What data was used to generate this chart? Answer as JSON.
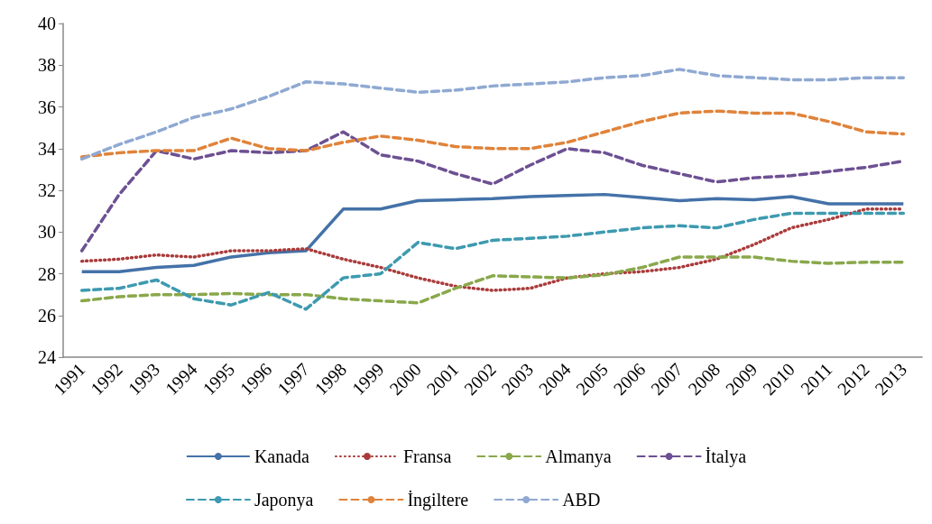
{
  "chart_data": {
    "type": "line",
    "categories": [
      "1991",
      "1992",
      "1993",
      "1994",
      "1995",
      "1996",
      "1997",
      "1998",
      "1999",
      "2000",
      "2001",
      "2002",
      "2003",
      "2004",
      "2005",
      "2006",
      "2007",
      "2008",
      "2009",
      "2010",
      "2011",
      "2012",
      "2013"
    ],
    "series": [
      {
        "name": "Kanada",
        "color": "#4472a8",
        "line_style": "solid",
        "values": [
          28.1,
          28.1,
          28.3,
          28.4,
          28.8,
          29.0,
          29.1,
          31.1,
          31.1,
          31.5,
          31.55,
          31.6,
          31.7,
          31.75,
          31.8,
          31.65,
          31.5,
          31.6,
          31.55,
          31.7,
          31.35,
          31.35,
          31.35
        ]
      },
      {
        "name": "Fransa",
        "color": "#aa3b3b",
        "line_style": "dotted",
        "values": [
          28.6,
          28.7,
          28.9,
          28.8,
          29.1,
          29.1,
          29.2,
          28.7,
          28.3,
          27.8,
          27.4,
          27.2,
          27.3,
          27.8,
          28.0,
          28.1,
          28.3,
          28.7,
          29.4,
          30.2,
          30.6,
          31.1,
          31.1
        ]
      },
      {
        "name": "Almanya",
        "color": "#89a84b",
        "line_style": "dashed",
        "values": [
          26.7,
          26.9,
          27.0,
          27.0,
          27.05,
          27.0,
          27.0,
          26.8,
          26.7,
          26.6,
          27.3,
          27.9,
          27.85,
          27.8,
          27.95,
          28.3,
          28.8,
          28.8,
          28.8,
          28.6,
          28.5,
          28.55,
          28.55
        ]
      },
      {
        "name": "İtalya",
        "color": "#6d5093",
        "line_style": "dashed",
        "values": [
          29.1,
          31.8,
          33.9,
          33.5,
          33.9,
          33.8,
          33.9,
          34.8,
          33.7,
          33.4,
          32.8,
          32.3,
          33.2,
          34.0,
          33.8,
          33.2,
          32.8,
          32.4,
          32.6,
          32.7,
          32.9,
          33.1,
          33.4
        ]
      },
      {
        "name": "Japonya",
        "color": "#3d9ab0",
        "line_style": "dashed",
        "values": [
          27.2,
          27.3,
          27.7,
          26.8,
          26.5,
          27.1,
          26.3,
          27.8,
          28.0,
          29.5,
          29.2,
          29.6,
          29.7,
          29.8,
          30.0,
          30.2,
          30.3,
          30.2,
          30.6,
          30.9,
          30.9,
          30.9,
          30.9
        ]
      },
      {
        "name": "İngiltere",
        "color": "#e0833a",
        "line_style": "dashed",
        "values": [
          33.6,
          33.8,
          33.9,
          33.9,
          34.5,
          34.0,
          33.9,
          34.3,
          34.6,
          34.4,
          34.1,
          34.0,
          34.0,
          34.3,
          34.8,
          35.3,
          35.7,
          35.8,
          35.7,
          35.7,
          35.3,
          34.8,
          34.7
        ]
      },
      {
        "name": "ABD",
        "color": "#8fa9d2",
        "line_style": "dashed",
        "values": [
          33.5,
          34.2,
          34.8,
          35.5,
          35.9,
          36.5,
          37.2,
          37.1,
          36.9,
          36.7,
          36.8,
          37.0,
          37.1,
          37.2,
          37.4,
          37.5,
          37.8,
          37.5,
          37.4,
          37.3,
          37.3,
          37.4,
          37.4
        ]
      }
    ],
    "ylim": [
      24,
      40
    ],
    "yticks": [
      24,
      26,
      28,
      30,
      32,
      34,
      36,
      38,
      40
    ],
    "grid": false,
    "legend": "bottom",
    "marker": "none"
  }
}
